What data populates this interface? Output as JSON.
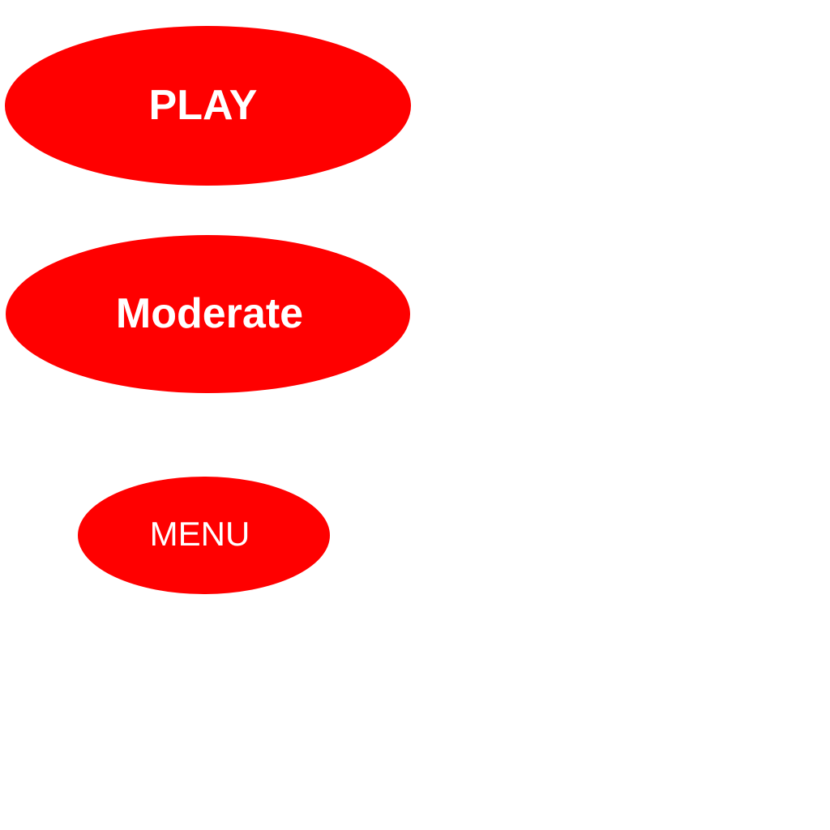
{
  "game_menu": {
    "play_button_label": "PLAY",
    "difficulty_button_label": "Moderate",
    "menu_button_label": "MENU"
  },
  "colors": {
    "button_fill": "#ff0000",
    "button_text": "#ffffff",
    "background": "#ffffff"
  }
}
